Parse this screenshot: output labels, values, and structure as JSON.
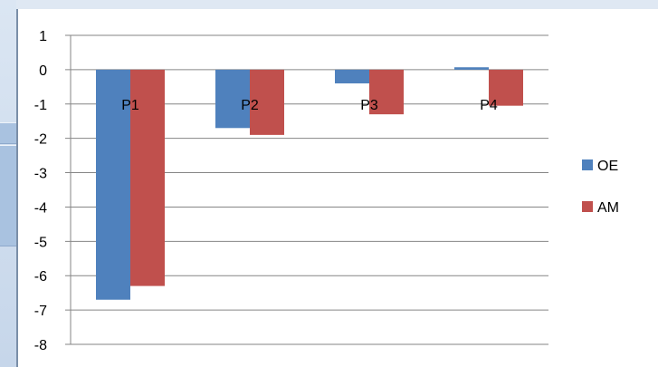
{
  "colors": {
    "OE": "#4f81bd",
    "AM": "#c0504d",
    "gridline": "#868686",
    "axis": "#868686"
  },
  "chart_data": {
    "type": "bar",
    "categories": [
      "P1",
      "P2",
      "P3",
      "P4"
    ],
    "series": [
      {
        "name": "OE",
        "values": [
          -6.7,
          -1.7,
          -0.4,
          0.07
        ]
      },
      {
        "name": "AM",
        "values": [
          -6.3,
          -1.9,
          -1.3,
          -1.05
        ]
      }
    ],
    "ylim": [
      -8,
      1
    ],
    "yticks": [
      "1",
      "0",
      "-1",
      "-2",
      "-3",
      "-4",
      "-5",
      "-6",
      "-7",
      "-8"
    ],
    "grid": true,
    "legend_position": "right",
    "category_labels_position": "inside-at-zero-line"
  }
}
